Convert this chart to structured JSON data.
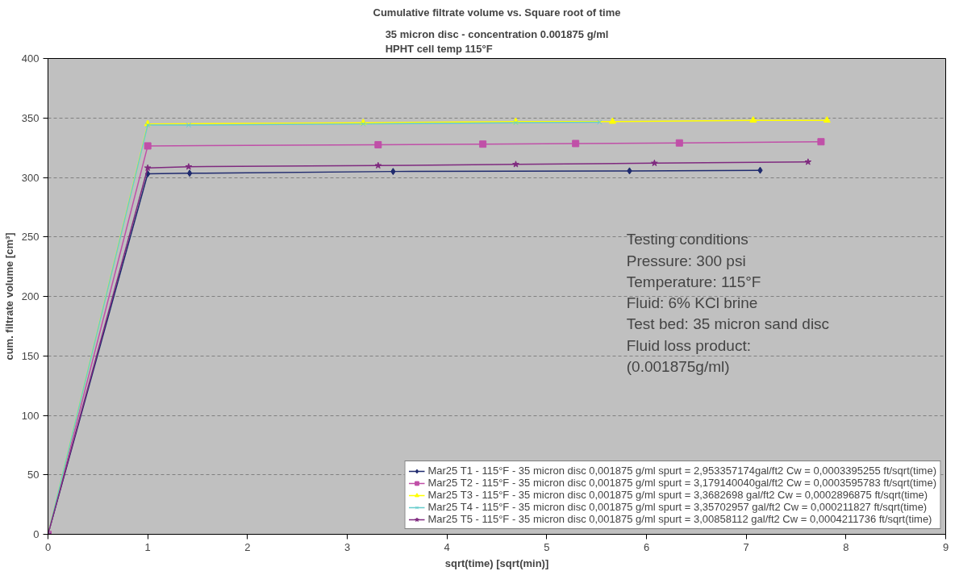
{
  "chart_data": {
    "type": "line",
    "title": "Cumulative filtrate volume vs. Square root of time",
    "subtitle": "35 micron disc - concentration 0.001875 g/ml\nHPHT cell temp 115°F",
    "xlabel": "sqrt(time) [sqrt(min)]",
    "ylabel": "cum. filtrate volume [cm³]",
    "xlim": [
      0,
      9
    ],
    "xticks": [
      0,
      1,
      2,
      3,
      4,
      5,
      6,
      7,
      8,
      9
    ],
    "ylim": [
      0,
      400
    ],
    "yticks": [
      0,
      50,
      100,
      150,
      200,
      250,
      300,
      350,
      400
    ],
    "grid": "y",
    "legend": "bottom right",
    "line_style": "solid",
    "series": [
      {
        "name": "Mar25 T1 - 115°F - 35 micron disc 0,001875 g/ml spurt = 2,953357174gal/ft2 Cw = 0,0003395255 ft/sqrt(time)",
        "color": "#1f2a6e",
        "marker": "diamond",
        "x": [
          0,
          1.0,
          1.42,
          3.46,
          5.83,
          7.14
        ],
        "values": [
          0,
          303,
          303.5,
          305,
          305.5,
          306
        ]
      },
      {
        "name": "Mar25 T2 - 115°F - 35 micron disc 0,001875 g/ml spurt = 3,179140040gal/ft2 Cw = 0,0003595783 ft/sqrt(time)",
        "color": "#c050a8",
        "marker": "square",
        "x": [
          0,
          1.0,
          3.31,
          4.36,
          5.29,
          6.33,
          7.75
        ],
        "values": [
          0,
          326.5,
          327.5,
          328,
          328.5,
          329,
          330
        ]
      },
      {
        "name": "Mar25 T3 - 115°F - 35 micron disc 0,001875 g/ml spurt = 3,3682698 gal/ft2 Cw = 0,0002896875 ft/sqrt(time)",
        "color": "#ffff00",
        "marker": "triangle",
        "x": [
          0,
          1.0,
          3.16,
          4.69,
          5.66,
          7.07,
          7.81
        ],
        "values": [
          0,
          345,
          346,
          347,
          347,
          348,
          348
        ]
      },
      {
        "name": "Mar25 T4 - 115°F - 35 micron disc 0,001875 g/ml spurt = 3,35702957 gal/ft2 Cw = 0,000211827 ft/sqrt(time)",
        "color": "#66cccc",
        "marker": "cross",
        "x": [
          0,
          1.0,
          1.41,
          3.16,
          4.69,
          5.53
        ],
        "values": [
          0,
          344,
          344,
          345,
          346,
          346.5
        ]
      },
      {
        "name": "Mar25 T5 - 115°F - 35 micron disc 0,001875 g/ml spurt = 3,00858112 gal/ft2 Cw = 0,0004211736 ft/sqrt(time)",
        "color": "#7f2a7f",
        "marker": "star",
        "x": [
          0,
          1.0,
          1.41,
          3.31,
          4.69,
          6.08,
          7.62
        ],
        "values": [
          0,
          308,
          309,
          310,
          311,
          312,
          313
        ]
      }
    ],
    "annotations": [
      "Testing conditions\nPressure: 300 psi\nTemperature: 115°F\nFluid: 6% KCl brine\nTest bed: 35 micron sand disc\nFluid loss product:\n(0.001875g/ml)"
    ]
  }
}
